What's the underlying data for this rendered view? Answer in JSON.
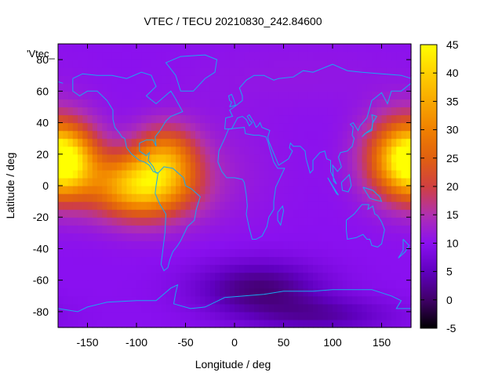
{
  "chart_data": {
    "type": "heatmap",
    "title": "VTEC / TECU 20210830_242.84600",
    "xlabel": "Longitude / deg",
    "ylabel": "Latitude / deg",
    "key_label": "'Vtec_",
    "xlim": [
      -180,
      180
    ],
    "ylim": [
      -90,
      90
    ],
    "xticks": [
      -150,
      -100,
      -50,
      0,
      50,
      100,
      150
    ],
    "yticks": [
      -80,
      -60,
      -40,
      -20,
      0,
      20,
      40,
      60,
      80
    ],
    "colorbar": {
      "range": [
        -5,
        45
      ],
      "ticks": [
        -5,
        0,
        5,
        10,
        15,
        20,
        25,
        30,
        35,
        40,
        45
      ],
      "colormap": [
        {
          "value": -5,
          "color": "#000000"
        },
        {
          "value": 0,
          "color": "#400068"
        },
        {
          "value": 5,
          "color": "#6000c0"
        },
        {
          "value": 10,
          "color": "#8a10f0"
        },
        {
          "value": 15,
          "color": "#b030b0"
        },
        {
          "value": 20,
          "color": "#d04040"
        },
        {
          "value": 25,
          "color": "#e06010"
        },
        {
          "value": 30,
          "color": "#f08000"
        },
        {
          "value": 35,
          "color": "#f8a800"
        },
        {
          "value": 40,
          "color": "#ffd000"
        },
        {
          "value": 45,
          "color": "#ffff00"
        }
      ]
    },
    "field": {
      "background": 10,
      "features": [
        {
          "lon": -95,
          "lat": 0,
          "sigma_lon": 35,
          "sigma_lat": 14,
          "amp": 30
        },
        {
          "lon": -70,
          "lat": 20,
          "sigma_lon": 22,
          "sigma_lat": 13,
          "amp": 16
        },
        {
          "lon": -175,
          "lat": 15,
          "sigma_lon": 22,
          "sigma_lat": 14,
          "amp": 20
        },
        {
          "lon": 175,
          "lat": 18,
          "sigma_lon": 28,
          "sigma_lat": 18,
          "amp": 24
        },
        {
          "lon": 25,
          "lat": -65,
          "sigma_lon": 45,
          "sigma_lat": 12,
          "amp": -9
        },
        {
          "lon": 90,
          "lat": -82,
          "sigma_lon": 50,
          "sigma_lat": 8,
          "amp": -6
        },
        {
          "lon": -30,
          "lat": 10,
          "sigma_lon": 50,
          "sigma_lat": 25,
          "amp": 2
        },
        {
          "lon": 70,
          "lat": 70,
          "sigma_lon": 90,
          "sigma_lat": 15,
          "amp": 1
        }
      ]
    }
  }
}
